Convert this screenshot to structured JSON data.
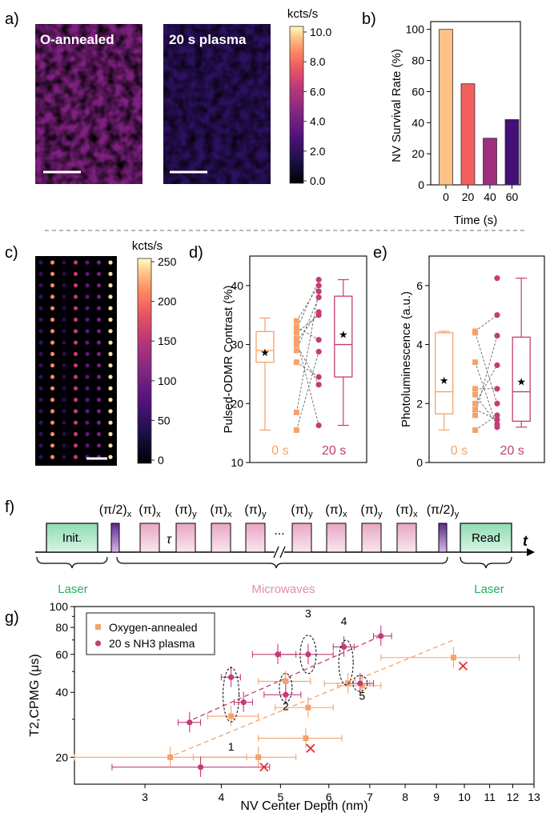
{
  "panels": {
    "a": {
      "label": "a)",
      "left_title": "O-annealed",
      "right_title": "20 s plasma",
      "colorbar": {
        "unit": "kcts/s",
        "ticks": [
          "10.0",
          "8.0",
          "6.0",
          "4.0",
          "2.0",
          "0.0"
        ]
      }
    },
    "c": {
      "label": "c)",
      "colorbar": {
        "unit": "kcts/s",
        "ticks": [
          "250",
          "200",
          "150",
          "100",
          "50",
          "0"
        ]
      }
    },
    "f": {
      "label": "f)",
      "init": "Init.",
      "read": "Read",
      "time_axis": "t",
      "tau": "τ",
      "ellipsis": "...",
      "pulses": [
        "(π/2)x",
        "(π)x",
        "(π)y",
        "(π)x",
        "(π)y",
        "(π)y",
        "(π)x",
        "(π)y",
        "(π)x",
        "(π/2)y"
      ],
      "groups": [
        "Laser",
        "Microwaves",
        "Laser"
      ]
    }
  },
  "chart_data": [
    {
      "id": "b",
      "label": "b)",
      "type": "bar",
      "xlabel": "Time (s)",
      "ylabel": "NV Survival Rate (%)",
      "categories": [
        "0",
        "20",
        "40",
        "60"
      ],
      "values": [
        100,
        65,
        30,
        42
      ],
      "ylim": [
        0,
        105
      ],
      "yticks": [
        "0",
        "20",
        "40",
        "60",
        "80",
        "100"
      ],
      "colors": [
        "#fec287",
        "#f1605d",
        "#9e2f7f",
        "#440f76"
      ]
    },
    {
      "id": "d",
      "label": "d)",
      "type": "box",
      "ylabel": "Pulsed-ODMR Contrast (%)",
      "categories": [
        "0 s",
        "20 s"
      ],
      "ylim": [
        10,
        45
      ],
      "yticks": [
        "10",
        "20",
        "30",
        "40"
      ],
      "series": [
        {
          "name": "0 s",
          "color": "#f5a26a",
          "whisker_low": 15.5,
          "q1": 27,
          "median": 29,
          "q3": 32.2,
          "whisker_high": 34.5,
          "mean": 28.7,
          "values": [
            15.5,
            18.5,
            27,
            29,
            30,
            30.5,
            31,
            32,
            32.5,
            33,
            34
          ]
        },
        {
          "name": "20 s",
          "color": "#c43c76",
          "whisker_low": 16.3,
          "q1": 24.5,
          "median": 30,
          "q3": 38.2,
          "whisker_high": 41,
          "mean": 31.8,
          "values": [
            16.3,
            23.2,
            24.5,
            28.8,
            30.8,
            35,
            35.5,
            38,
            39,
            40,
            41
          ]
        }
      ]
    },
    {
      "id": "e",
      "label": "e)",
      "type": "box",
      "ylabel": "Photoluminescence (a.u.)",
      "categories": [
        "0 s",
        "20 s"
      ],
      "ylim": [
        0,
        7
      ],
      "yticks": [
        "0",
        "2",
        "4",
        "6"
      ],
      "series": [
        {
          "name": "0 s",
          "color": "#f5a26a",
          "whisker_low": 1.1,
          "q1": 1.65,
          "median": 2.4,
          "q3": 4.4,
          "whisker_high": 4.45,
          "mean": 2.8,
          "values": [
            1.1,
            1.6,
            1.8,
            2.0,
            2.3,
            2.5,
            3.4,
            4.4,
            4.45
          ]
        },
        {
          "name": "20 s",
          "color": "#c43c76",
          "whisker_low": 1.2,
          "q1": 1.4,
          "median": 2.4,
          "q3": 4.25,
          "whisker_high": 6.25,
          "mean": 2.75,
          "values": [
            1.2,
            1.3,
            1.45,
            1.6,
            2.0,
            2.5,
            3.3,
            4.3,
            5.0,
            6.25
          ]
        }
      ]
    },
    {
      "id": "g",
      "label": "g)",
      "type": "scatter",
      "xscale": "log",
      "yscale": "log",
      "xlabel": "NV Center Depth (nm)",
      "ylabel": "T2,CPMG (μs)",
      "xlim": [
        2.3,
        13
      ],
      "ylim": [
        15,
        100
      ],
      "xticks": [
        "3",
        "4",
        "5",
        "6",
        "7",
        "8",
        "9",
        "10",
        "11",
        "12",
        "13"
      ],
      "yticks": [
        "20",
        "40",
        "60",
        "80",
        "100"
      ],
      "legend": [
        "Oxygen-annealed",
        "20 s NH3 plasma"
      ],
      "series": [
        {
          "name": "Oxygen-annealed",
          "color": "#f5a26a",
          "points": [
            [
              3.3,
              20,
              2.3,
              4.4
            ],
            [
              4.6,
              20,
              3.6,
              5.3
            ],
            [
              4.15,
              31,
              3.8,
              4.6
            ],
            [
              5.1,
              45,
              4.6,
              5.6
            ],
            [
              5.5,
              24.5,
              4.6,
              6.3
            ],
            [
              5.55,
              34,
              4.9,
              6.1
            ],
            [
              6.45,
              44,
              5.9,
              7.0
            ],
            [
              6.8,
              43,
              6.2,
              7.3
            ],
            [
              9.6,
              58,
              7.3,
              12.3
            ]
          ]
        },
        {
          "name": "20 s NH3 plasma",
          "color": "#c43c76",
          "points": [
            [
              3.7,
              18,
              2.65,
              4.8
            ],
            [
              3.55,
              29,
              3.4,
              3.7
            ],
            [
              4.15,
              47,
              4.0,
              4.3
            ],
            [
              4.35,
              36,
              4.2,
              4.5
            ],
            [
              4.95,
              60,
              4.5,
              5.3
            ],
            [
              5.1,
              39,
              4.7,
              5.4
            ],
            [
              5.55,
              60,
              5.0,
              6.1
            ],
            [
              6.35,
              65,
              6.1,
              6.6
            ],
            [
              6.75,
              44,
              6.4,
              7.1
            ],
            [
              7.3,
              73,
              7.1,
              7.6
            ]
          ]
        },
        {
          "name": "cross",
          "color": "#e53030",
          "points": [
            [
              4.7,
              18
            ],
            [
              5.6,
              22
            ],
            [
              9.95,
              53
            ]
          ]
        }
      ],
      "clusters": [
        "1",
        "2",
        "3",
        "4",
        "5"
      ]
    }
  ]
}
